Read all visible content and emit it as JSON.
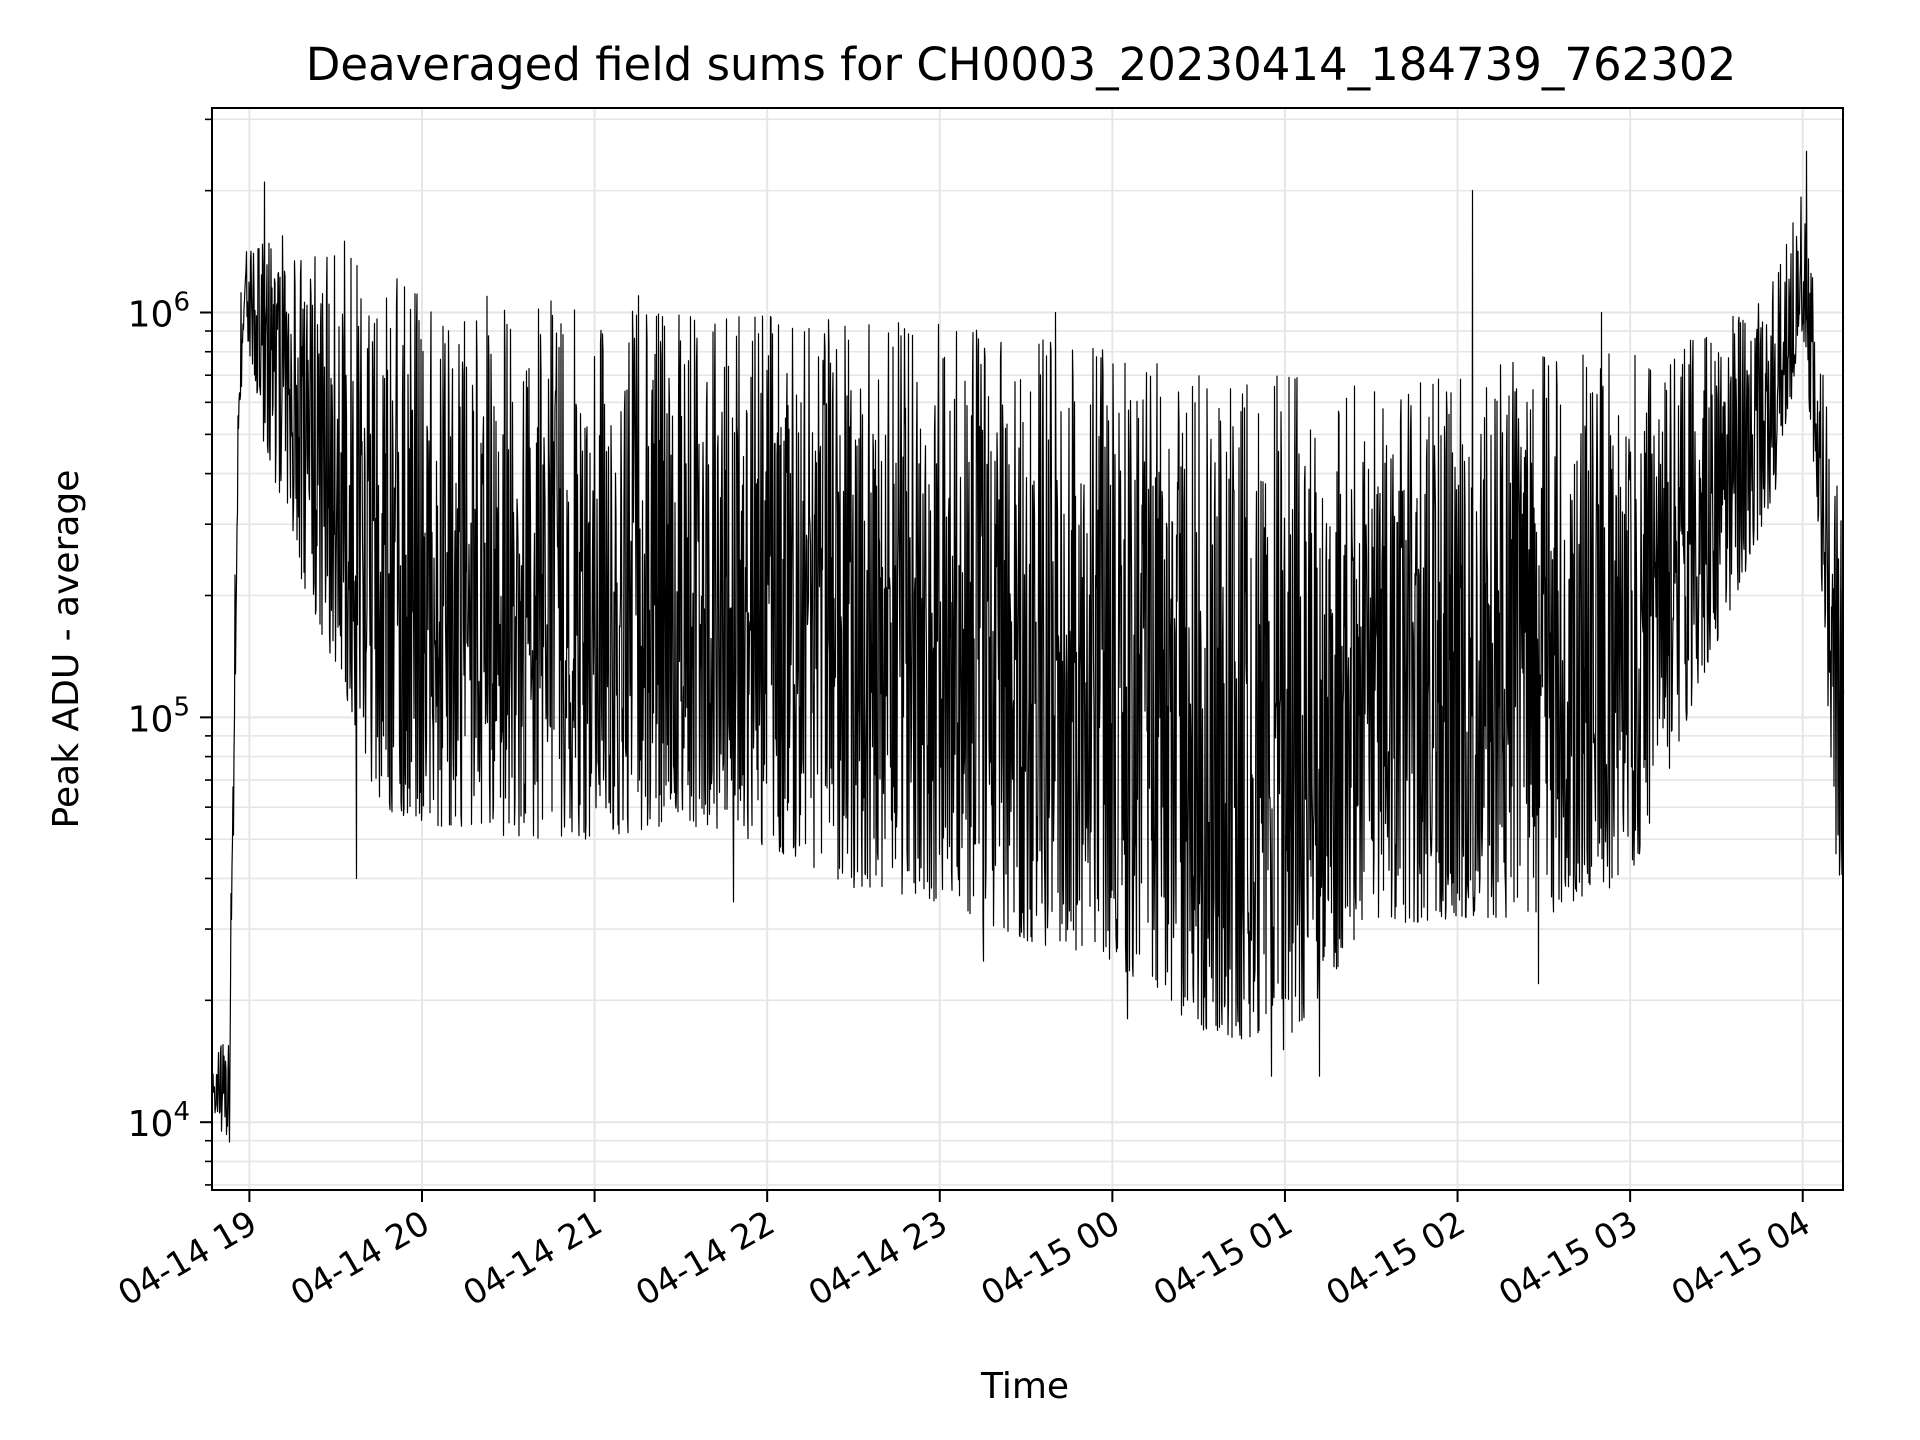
{
  "chart_data": {
    "type": "line",
    "title": "Deaveraged field sums for CH0003_20230414_184739_762302",
    "xlabel": "Time",
    "ylabel": "Peak ADU - average",
    "y_scale": "log",
    "ylim": [
      6800,
      3200000
    ],
    "xlim": [
      "2023-04-14 18:47",
      "2023-04-15 04:14"
    ],
    "grid": true,
    "line_color": "#000000",
    "x_ticks": [
      {
        "value": "2023-04-14 19:00",
        "label": "04-14 19"
      },
      {
        "value": "2023-04-14 20:00",
        "label": "04-14 20"
      },
      {
        "value": "2023-04-14 21:00",
        "label": "04-14 21"
      },
      {
        "value": "2023-04-14 22:00",
        "label": "04-14 22"
      },
      {
        "value": "2023-04-14 23:00",
        "label": "04-14 23"
      },
      {
        "value": "2023-04-15 00:00",
        "label": "04-15 00"
      },
      {
        "value": "2023-04-15 01:00",
        "label": "04-15 01"
      },
      {
        "value": "2023-04-15 02:00",
        "label": "04-15 02"
      },
      {
        "value": "2023-04-15 03:00",
        "label": "04-15 03"
      },
      {
        "value": "2023-04-15 04:00",
        "label": "04-15 04"
      }
    ],
    "y_ticks": [
      {
        "value": 10000,
        "base": "10",
        "exp": "4"
      },
      {
        "value": 100000,
        "base": "10",
        "exp": "5"
      },
      {
        "value": 1000000,
        "base": "10",
        "exp": "6"
      }
    ],
    "envelope": [
      {
        "x": "2023-04-14 18:47",
        "low": 11000,
        "high": 14000
      },
      {
        "x": "2023-04-14 18:50",
        "low": 9500,
        "high": 16000
      },
      {
        "x": "2023-04-14 18:53",
        "low": 8800,
        "high": 17000
      },
      {
        "x": "2023-04-14 18:56",
        "low": 400000,
        "high": 900000
      },
      {
        "x": "2023-04-14 18:58",
        "low": 1000000,
        "high": 1400000
      },
      {
        "x": "2023-04-14 19:05",
        "low": 450000,
        "high": 1900000
      },
      {
        "x": "2023-04-14 19:15",
        "low": 250000,
        "high": 1400000
      },
      {
        "x": "2023-04-14 19:30",
        "low": 130000,
        "high": 1400000
      },
      {
        "x": "2023-04-14 19:45",
        "low": 60000,
        "high": 1300000
      },
      {
        "x": "2023-04-14 20:00",
        "low": 55000,
        "high": 1100000
      },
      {
        "x": "2023-04-14 20:30",
        "low": 50000,
        "high": 1100000
      },
      {
        "x": "2023-04-14 21:00",
        "low": 50000,
        "high": 1050000
      },
      {
        "x": "2023-04-14 21:30",
        "low": 55000,
        "high": 1000000
      },
      {
        "x": "2023-04-14 22:00",
        "low": 48000,
        "high": 1000000
      },
      {
        "x": "2023-04-14 22:30",
        "low": 38000,
        "high": 950000
      },
      {
        "x": "2023-04-14 23:00",
        "low": 35000,
        "high": 950000
      },
      {
        "x": "2023-04-14 23:30",
        "low": 28000,
        "high": 900000
      },
      {
        "x": "2023-04-15 00:00",
        "low": 25000,
        "high": 800000
      },
      {
        "x": "2023-04-15 00:30",
        "low": 17000,
        "high": 700000
      },
      {
        "x": "2023-04-15 01:00",
        "low": 15000,
        "high": 700000
      },
      {
        "x": "2023-04-15 01:30",
        "low": 30000,
        "high": 650000
      },
      {
        "x": "2023-04-15 02:00",
        "low": 32000,
        "high": 700000
      },
      {
        "x": "2023-04-15 02:30",
        "low": 32000,
        "high": 800000
      },
      {
        "x": "2023-04-15 03:00",
        "low": 40000,
        "high": 800000
      },
      {
        "x": "2023-04-15 03:30",
        "low": 150000,
        "high": 900000
      },
      {
        "x": "2023-04-15 03:50",
        "low": 350000,
        "high": 1200000
      },
      {
        "x": "2023-04-15 04:00",
        "low": 900000,
        "high": 2000000
      },
      {
        "x": "2023-04-15 04:06",
        "low": 250000,
        "high": 800000
      },
      {
        "x": "2023-04-15 04:12",
        "low": 40000,
        "high": 400000
      }
    ],
    "spikes": [
      {
        "x": "2023-04-14 19:05",
        "y": 2100000
      },
      {
        "x": "2023-04-14 19:33",
        "y": 1500000
      },
      {
        "x": "2023-04-14 21:15",
        "y": 1100000
      },
      {
        "x": "2023-04-14 23:40",
        "y": 1000000
      },
      {
        "x": "2023-04-15 02:05",
        "y": 2000000
      },
      {
        "x": "2023-04-15 02:50",
        "y": 1000000
      },
      {
        "x": "2023-04-15 04:01",
        "y": 2500000
      },
      {
        "x": "2023-04-14 19:37",
        "y": 40000
      },
      {
        "x": "2023-04-14 21:48",
        "y": 35000
      },
      {
        "x": "2023-04-14 23:15",
        "y": 25000
      },
      {
        "x": "2023-04-15 00:05",
        "y": 18000
      },
      {
        "x": "2023-04-15 00:55",
        "y": 13000
      },
      {
        "x": "2023-04-15 01:12",
        "y": 13000
      },
      {
        "x": "2023-04-15 02:28",
        "y": 22000
      }
    ]
  }
}
